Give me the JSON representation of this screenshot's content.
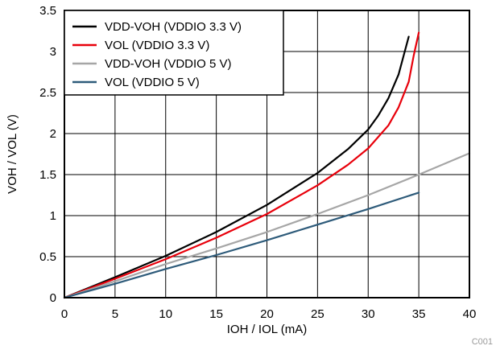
{
  "chart_data": {
    "type": "line",
    "xlabel": "IOH / IOL (mA)",
    "ylabel": "VOH / VOL (V)",
    "xlim": [
      0,
      40
    ],
    "ylim": [
      0,
      3.5
    ],
    "x_ticks": [
      0,
      5,
      10,
      15,
      20,
      25,
      30,
      35,
      40
    ],
    "y_ticks": [
      0,
      0.5,
      1,
      1.5,
      2,
      2.5,
      3,
      3.5
    ],
    "y_tick_labels": [
      "0",
      "0.5",
      "1",
      "1.5",
      "2",
      "2.5",
      "3",
      "3.5"
    ],
    "grid": true,
    "legend_position": "top-left",
    "figure_id": "C001",
    "series": [
      {
        "name": "VDD-VOH (VDDIO 3.3 V)",
        "color": "#000000",
        "x": [
          0,
          5,
          10,
          15,
          20,
          25,
          28,
          30,
          31,
          32,
          33,
          33.5,
          34
        ],
        "y": [
          0,
          0.25,
          0.51,
          0.8,
          1.13,
          1.52,
          1.81,
          2.05,
          2.22,
          2.43,
          2.72,
          2.95,
          3.18
        ]
      },
      {
        "name": "VOL (VDDIO 3.3 V)",
        "color": "#e8000b",
        "x": [
          0,
          5,
          10,
          15,
          20,
          25,
          28,
          30,
          32,
          33,
          34,
          34.5,
          35
        ],
        "y": [
          0,
          0.23,
          0.47,
          0.73,
          1.02,
          1.37,
          1.62,
          1.82,
          2.1,
          2.32,
          2.63,
          2.95,
          3.23
        ]
      },
      {
        "name": "VDD-VOH (VDDIO 5 V)",
        "color": "#a6a6a6",
        "x": [
          0,
          5,
          10,
          15,
          20,
          25,
          30,
          35,
          40
        ],
        "y": [
          0,
          0.2,
          0.41,
          0.6,
          0.8,
          1.02,
          1.25,
          1.5,
          1.76
        ]
      },
      {
        "name": "VOL (VDDIO 5 V)",
        "color": "#2e5b7a",
        "x": [
          0,
          5,
          10,
          15,
          20,
          25,
          30,
          35
        ],
        "y": [
          0,
          0.17,
          0.35,
          0.52,
          0.7,
          0.89,
          1.08,
          1.28
        ]
      }
    ]
  }
}
